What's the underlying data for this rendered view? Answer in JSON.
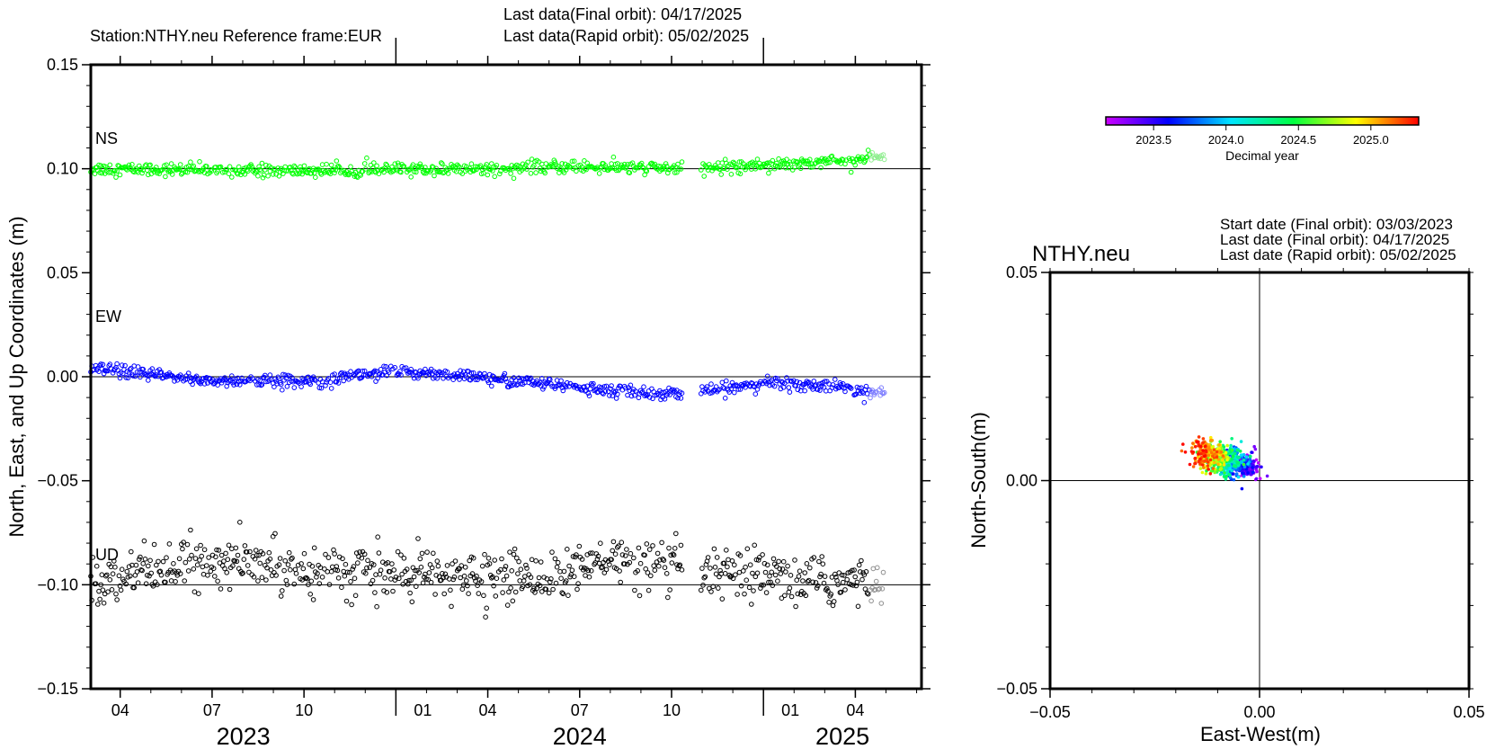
{
  "header": {
    "station_line": "Station:NTHY.neu   Reference frame:EUR",
    "final_line": "Last data(Final orbit): 04/17/2025",
    "rapid_line": "Last data(Rapid orbit): 05/02/2025"
  },
  "colors": {
    "ns": "#00ff00",
    "ew": "#0000ff",
    "ud": "#000000",
    "ns_rapid": "#90ee90",
    "ew_rapid": "#8080ff",
    "ud_rapid": "#909090"
  },
  "chart_data": [
    {
      "type": "scatter",
      "title": "",
      "ylabel": "North, East, and Up Coordinates (m)",
      "xlabel": "",
      "ylim": [
        -0.15,
        0.15
      ],
      "y_ticks": [
        "0.15",
        "0.10",
        "0.05",
        "0.00",
        "−0.05",
        "−0.10",
        "−0.15"
      ],
      "x_range_decimal_year": [
        2023.17,
        2025.43
      ],
      "x_month_ticks": [
        "04",
        "07",
        "10",
        "01",
        "04",
        "07",
        "10",
        "01",
        "04"
      ],
      "x_year_labels": [
        "2023",
        "2024",
        "2025"
      ],
      "reference_lines": [
        0.1,
        0.0,
        -0.1
      ],
      "final_orbit_end": "2025.29",
      "rapid_orbit_end": "2025.33",
      "series": [
        {
          "name": "NS",
          "offset": 0.1,
          "trend": [
            [
              2023.17,
              0.1
            ],
            [
              2023.7,
              0.099
            ],
            [
              2024.2,
              0.1
            ],
            [
              2024.5,
              0.101
            ],
            [
              2024.8,
              0.1
            ],
            [
              2025.0,
              0.102
            ],
            [
              2025.3,
              0.105
            ]
          ],
          "scatter_amp": 0.0015
        },
        {
          "name": "EW",
          "offset": 0.0,
          "trend": [
            [
              2023.17,
              0.004
            ],
            [
              2023.5,
              -0.002
            ],
            [
              2023.75,
              -0.002
            ],
            [
              2023.95,
              0.002
            ],
            [
              2024.1,
              0.002
            ],
            [
              2024.25,
              -0.001
            ],
            [
              2024.45,
              -0.004
            ],
            [
              2024.6,
              -0.007
            ],
            [
              2024.75,
              -0.008
            ],
            [
              2024.85,
              -0.007
            ],
            [
              2025.0,
              -0.003
            ],
            [
              2025.15,
              -0.004
            ],
            [
              2025.33,
              -0.008
            ]
          ],
          "scatter_amp": 0.0015
        },
        {
          "name": "UD",
          "offset": -0.1,
          "trend": [
            [
              2023.17,
              -0.097
            ],
            [
              2023.45,
              -0.09
            ],
            [
              2023.6,
              -0.09
            ],
            [
              2023.9,
              -0.094
            ],
            [
              2024.2,
              -0.097
            ],
            [
              2024.45,
              -0.095
            ],
            [
              2024.6,
              -0.088
            ],
            [
              2024.7,
              -0.091
            ],
            [
              2024.9,
              -0.096
            ],
            [
              2025.33,
              -0.1
            ]
          ],
          "scatter_amp": 0.006
        }
      ]
    },
    {
      "type": "scatter",
      "title": "NTHY.neu",
      "xlabel": "East-West(m)",
      "ylabel": "North-South(m)",
      "xlim": [
        -0.05,
        0.05
      ],
      "ylim": [
        -0.05,
        0.05
      ],
      "x_ticks": [
        "−0.05",
        "0.00",
        "0.05"
      ],
      "y_ticks": [
        "0.05",
        "0.00",
        "−0.05"
      ],
      "start_date_line": "Start date (Final orbit): 03/03/2023",
      "last_final_line": "Last date (Final orbit): 04/17/2025",
      "last_rapid_line": "Last date (Rapid orbit): 05/02/2025",
      "cluster_center": [
        -0.008,
        0.005
      ],
      "cluster_x_range": [
        -0.017,
        0.0
      ],
      "cluster_y_range": [
        -0.002,
        0.012
      ],
      "colorbar": {
        "label": "Decimal year",
        "range": [
          2023.17,
          2025.33
        ],
        "ticks": [
          "2023.5",
          "2024.0",
          "2024.5",
          "2025.0"
        ]
      }
    }
  ]
}
